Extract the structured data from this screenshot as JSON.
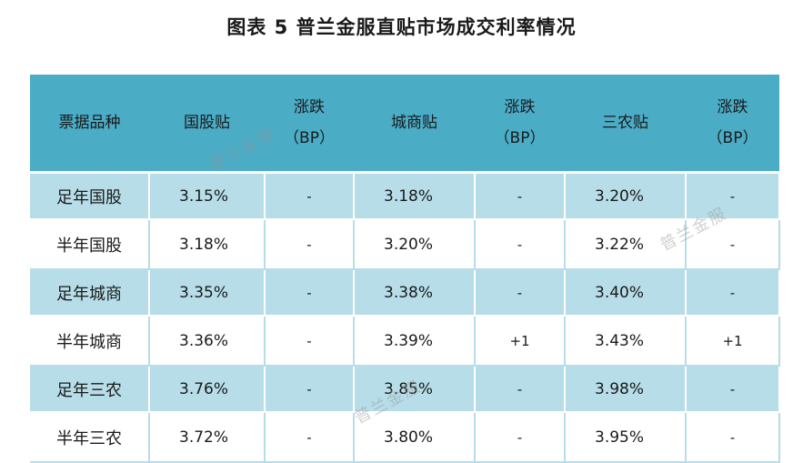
{
  "title": "图表 5  普兰金服直贴市场成交利率情况",
  "headers": {
    "type": "票据品种",
    "gg": "国股贴",
    "gg_chg_1": "涨跌",
    "gg_chg_2": "（BP）",
    "cs": "城商贴",
    "cs_chg_1": "涨跌",
    "cs_chg_2": "（BP）",
    "sn": "三农贴",
    "sn_chg_1": "涨跌",
    "sn_chg_2": "（BP）"
  },
  "rows": [
    {
      "name": "足年国股",
      "gg": "3.15%",
      "gg_chg": "-",
      "cs": "3.18%",
      "cs_chg": "-",
      "sn": "3.20%",
      "sn_chg": "-"
    },
    {
      "name": "半年国股",
      "gg": "3.18%",
      "gg_chg": "-",
      "cs": "3.20%",
      "cs_chg": "-",
      "sn": "3.22%",
      "sn_chg": "-"
    },
    {
      "name": "足年城商",
      "gg": "3.35%",
      "gg_chg": "-",
      "cs": "3.38%",
      "cs_chg": "-",
      "sn": "3.40%",
      "sn_chg": "-"
    },
    {
      "name": "半年城商",
      "gg": "3.36%",
      "gg_chg": "-",
      "cs": "3.39%",
      "cs_chg": "+1",
      "sn": "3.43%",
      "sn_chg": "+1"
    },
    {
      "name": "足年三农",
      "gg": "3.76%",
      "gg_chg": "-",
      "cs": "3.85%",
      "cs_chg": "-",
      "sn": "3.98%",
      "sn_chg": "-"
    },
    {
      "name": "半年三农",
      "gg": "3.72%",
      "gg_chg": "-",
      "cs": "3.80%",
      "cs_chg": "-",
      "sn": "3.95%",
      "sn_chg": "-"
    }
  ],
  "watermark": "普兰金服",
  "colors": {
    "header_bg": "#4bacc6",
    "band_bg": "#b6dde8"
  }
}
